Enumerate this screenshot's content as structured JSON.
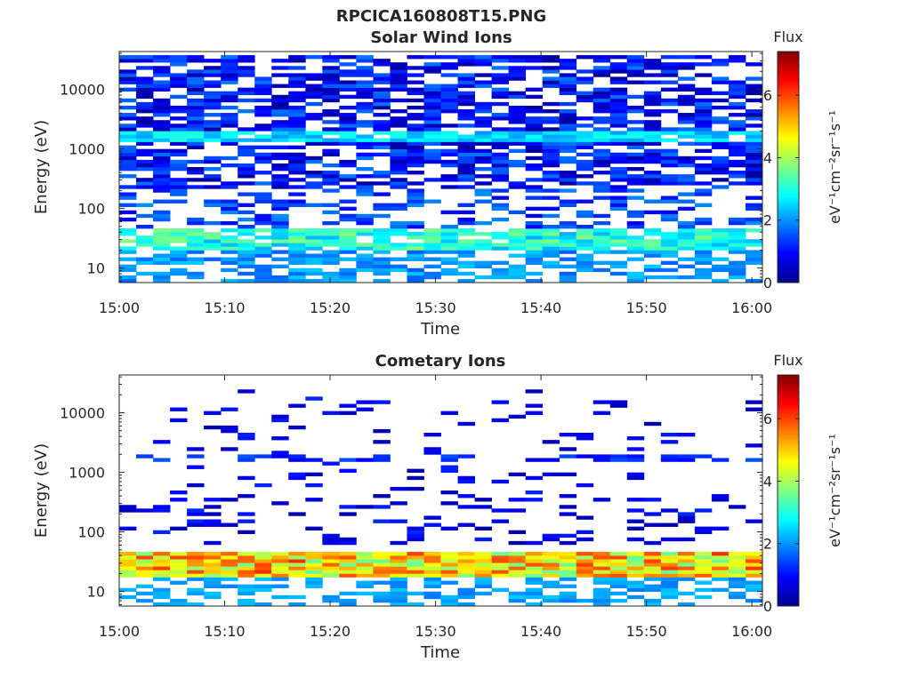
{
  "figure_title": "RPCICA160808T15.PNG",
  "chart_data": [
    {
      "type": "heatmap",
      "title": "Solar Wind Ions",
      "xlabel": "Time",
      "ylabel": "Energy (eV)",
      "x_ticks": [
        "15:00",
        "15:10",
        "15:20",
        "15:30",
        "15:40",
        "15:50",
        "16:00"
      ],
      "x_range": [
        "15:00",
        "16:01"
      ],
      "y_scale": "log",
      "y_ticks": [
        "10",
        "100",
        "1000",
        "10000"
      ],
      "y_range": [
        5.7,
        43000
      ],
      "colorbar": {
        "title": "Flux",
        "label": "eV⁻¹cm⁻²sr⁻¹s⁻¹",
        "range": [
          0,
          7.4
        ],
        "ticks": [
          "0",
          "2",
          "4",
          "6"
        ],
        "colormap": "jet"
      },
      "pattern": {
        "high_band_eV": [
          200,
          40000
        ],
        "high_band_level": [
          0.2,
          1.8
        ],
        "bright_band_eV": [
          1300,
          2100
        ],
        "bright_band_level": [
          2.0,
          3.0
        ],
        "low_band_eV": [
          20,
          45
        ],
        "low_band_level": [
          2.2,
          3.8
        ],
        "lowest_band_eV": [
          6,
          20
        ],
        "lowest_band_level": [
          1.6,
          2.4
        ]
      }
    },
    {
      "type": "heatmap",
      "title": "Cometary Ions",
      "xlabel": "Time",
      "ylabel": "Energy (eV)",
      "x_ticks": [
        "15:00",
        "15:10",
        "15:20",
        "15:30",
        "15:40",
        "15:50",
        "16:00"
      ],
      "x_range": [
        "15:00",
        "16:01"
      ],
      "y_scale": "log",
      "y_ticks": [
        "10",
        "100",
        "1000",
        "10000"
      ],
      "y_range": [
        5.7,
        43000
      ],
      "colorbar": {
        "title": "Flux",
        "label": "eV⁻¹cm⁻²sr⁻¹s⁻¹",
        "range": [
          0,
          7.4
        ],
        "ticks": [
          "0",
          "2",
          "4",
          "6"
        ],
        "colormap": "jet"
      },
      "pattern": {
        "sparse_band_eV": [
          60,
          25000
        ],
        "sparse_level": [
          0.3,
          1.2
        ],
        "line_band_eV": [
          1500,
          2000
        ],
        "line_level": [
          0.8,
          1.6
        ],
        "core_band_eV": [
          18,
          45
        ],
        "core_level": [
          3.5,
          6.2
        ],
        "lowest_band_eV": [
          6,
          18
        ],
        "lowest_level": [
          1.8,
          2.4
        ]
      }
    }
  ]
}
